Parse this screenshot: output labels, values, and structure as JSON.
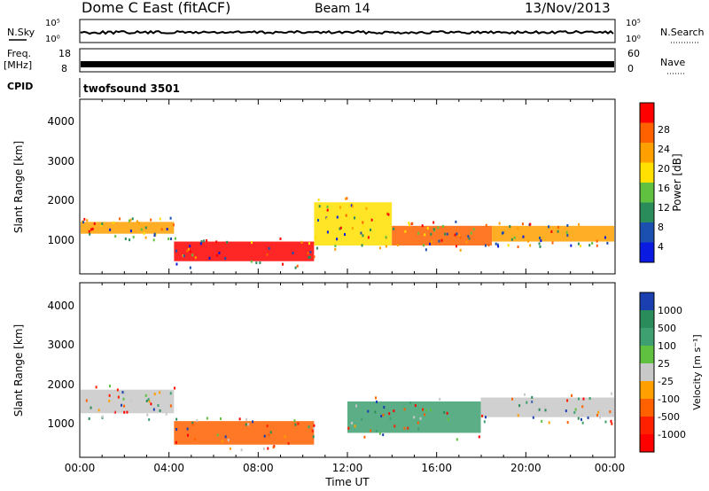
{
  "header": {
    "title": "Dome C East (fitACF)",
    "beam": "Beam 14",
    "date": "13/Nov/2013"
  },
  "noise_panel": {
    "left_label": "N.Sky",
    "right_label": "N.Search",
    "left_ticks": [
      "10^5",
      "10^0"
    ],
    "right_ticks": [
      "10^5",
      "10^0"
    ]
  },
  "freq_panel": {
    "left_label_line1": "Freq.",
    "left_label_line2": "[MHz]",
    "right_label": "Nave",
    "left_ticks": [
      "18",
      "8"
    ],
    "right_ticks": [
      "60",
      "0"
    ]
  },
  "cpid_panel": {
    "label": "CPID",
    "value": "twofsound 3501"
  },
  "chart_data": [
    {
      "type": "heatmap",
      "title": "",
      "xlabel": "",
      "ylabel": "Slant Range [km]",
      "yticks": [
        "1000",
        "2000",
        "3000",
        "4000"
      ],
      "xlim": [
        0,
        24
      ],
      "ylim": [
        200,
        4600
      ],
      "colorbar": {
        "label": "Power [dB]",
        "ticks": [
          "28",
          "24",
          "20",
          "16",
          "12",
          "8",
          "4"
        ],
        "colors": [
          "#ff0000",
          "#ff6000",
          "#ffa000",
          "#ffe000",
          "#60c040",
          "#2a8c5a",
          "#1b4fb0",
          "#0a1ae0"
        ]
      },
      "bands": [
        {
          "t0": 0,
          "t1": 4.2,
          "r0": 1200,
          "r1": 1500,
          "value": 20
        },
        {
          "t0": 4.2,
          "t1": 10.5,
          "r0": 500,
          "r1": 1000,
          "value": 28
        },
        {
          "t0": 10.5,
          "t1": 14,
          "r0": 900,
          "r1": 2000,
          "value": 16
        },
        {
          "t0": 14,
          "t1": 18.5,
          "r0": 900,
          "r1": 1400,
          "value": 24
        },
        {
          "t0": 18.5,
          "t1": 24,
          "r0": 1000,
          "r1": 1400,
          "value": 20
        }
      ]
    },
    {
      "type": "heatmap",
      "title": "",
      "xlabel": "Time UT",
      "ylabel": "Slant Range [km]",
      "xticks": [
        "00:00",
        "04:00",
        "08:00",
        "12:00",
        "16:00",
        "20:00",
        "00:00"
      ],
      "yticks": [
        "1000",
        "2000",
        "3000",
        "4000"
      ],
      "xlim": [
        0,
        24
      ],
      "ylim": [
        200,
        4600
      ],
      "colorbar": {
        "label": "Velocity [m s^-1]",
        "ticks": [
          "1000",
          "500",
          "100",
          "25",
          "-25",
          "-100",
          "-500",
          "-1000"
        ],
        "colors": [
          "#1b3fb0",
          "#2a8c5a",
          "#3ea070",
          "#60c040",
          "#c8c8c8",
          "#ffa000",
          "#ff6000",
          "#ff2000",
          "#ff0000"
        ]
      },
      "bands": [
        {
          "t0": 0,
          "t1": 4.2,
          "r0": 1300,
          "r1": 1900,
          "value": 0
        },
        {
          "t0": 4.2,
          "t1": 10.5,
          "r0": 500,
          "r1": 1100,
          "value": -300
        },
        {
          "t0": 12,
          "t1": 18,
          "r0": 800,
          "r1": 1600,
          "value": 300
        },
        {
          "t0": 18,
          "t1": 24,
          "r0": 1200,
          "r1": 1700,
          "value": 0
        }
      ]
    }
  ]
}
